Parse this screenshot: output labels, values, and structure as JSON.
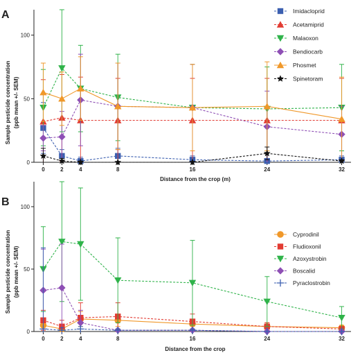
{
  "chart_data": [
    {
      "panel_label": "A",
      "type": "line",
      "xlabel": "Distance from the crop (m)",
      "ylabel_line1": "Sample pesticide concentration",
      "ylabel_line2": "(ppb mean +/- SEM)",
      "x": [
        0,
        2,
        4,
        8,
        16,
        24,
        32
      ],
      "xticks": [
        "0",
        "2",
        "4",
        "8",
        "16",
        "24",
        "32"
      ],
      "yticks": [
        "0",
        "50",
        "100"
      ],
      "ylim": [
        0,
        120
      ],
      "legend_position": "top-right",
      "series": [
        {
          "name": "Imidacloprid",
          "color": "#3b5fb0",
          "marker": "square",
          "line": "dashed",
          "values": [
            27,
            5,
            1,
            5,
            2,
            1,
            2
          ],
          "err": [
            20,
            5,
            3,
            6,
            3,
            2,
            3
          ]
        },
        {
          "name": "Acetamiprid",
          "color": "#e23b32",
          "marker": "triangle-up",
          "line": "dashed",
          "values": [
            32,
            35,
            33,
            33,
            33,
            33,
            33
          ],
          "err": [
            33,
            34,
            34,
            33,
            33,
            33,
            33
          ]
        },
        {
          "name": "Malaoxon",
          "color": "#2fb34a",
          "marker": "triangle-down",
          "line": "dashed",
          "values": [
            43,
            74,
            58,
            51,
            43,
            42,
            43
          ],
          "err": [
            30,
            50,
            34,
            34,
            34,
            33,
            34
          ]
        },
        {
          "name": "Bendiocarb",
          "color": "#8e4fb5",
          "marker": "diamond",
          "line": "dashed",
          "values": [
            19,
            20,
            49,
            44,
            43,
            28,
            22
          ],
          "err": [
            10,
            20,
            36,
            34,
            34,
            28,
            22
          ]
        },
        {
          "name": "Phosmet",
          "color": "#f0982a",
          "marker": "triangle-up",
          "line": "solid",
          "values": [
            55,
            50,
            58,
            44,
            43,
            44,
            34
          ],
          "err": [
            23,
            21,
            25,
            34,
            34,
            35,
            33
          ]
        },
        {
          "name": "Spinetoram",
          "color": "#111111",
          "marker": "star",
          "line": "dashed",
          "values": [
            5,
            1,
            0,
            0,
            0,
            7,
            1
          ],
          "err": [
            6,
            2,
            1,
            0,
            0,
            5,
            1
          ]
        }
      ]
    },
    {
      "panel_label": "B",
      "type": "line",
      "xlabel": "Distance from the crop",
      "ylabel_line1": "Sample pesticide concentration",
      "ylabel_line2": "(ppb mean +/- SEM)",
      "x": [
        0,
        2,
        4,
        8,
        16,
        24,
        32
      ],
      "xticks": [
        "0",
        "2",
        "4",
        "8",
        "16",
        "24",
        "32"
      ],
      "yticks": [
        "0",
        "50",
        "100"
      ],
      "ylim": [
        0,
        120
      ],
      "legend_position": "right",
      "series": [
        {
          "name": "Cyprodinil",
          "color": "#f0982a",
          "marker": "circle",
          "line": "solid",
          "values": [
            5,
            2,
            10,
            9,
            6,
            4,
            3
          ],
          "err": [
            3,
            2,
            6,
            5,
            4,
            3,
            2
          ]
        },
        {
          "name": "Fludioxonil",
          "color": "#e23b32",
          "marker": "square",
          "line": "dashed",
          "values": [
            9,
            4,
            11,
            12,
            8,
            4,
            2
          ],
          "err": [
            8,
            5,
            12,
            11,
            6,
            3,
            2
          ]
        },
        {
          "name": "Azoxystrobin",
          "color": "#2fb34a",
          "marker": "triangle-down",
          "line": "dashed",
          "values": [
            50,
            72,
            70,
            41,
            39,
            24,
            11
          ],
          "err": [
            34,
            48,
            45,
            34,
            34,
            20,
            9
          ]
        },
        {
          "name": "Boscalid",
          "color": "#8e4fb5",
          "marker": "diamond",
          "line": "dashed",
          "values": [
            33,
            35,
            7,
            1,
            1,
            0,
            0
          ],
          "err": [
            33,
            35,
            10,
            1,
            1,
            0,
            0
          ]
        },
        {
          "name": "Pyraclostrobin",
          "color": "#3b5fb0",
          "marker": "plus",
          "line": "dashed",
          "values": [
            2,
            1,
            2,
            1,
            1,
            0,
            0
          ],
          "err": [
            65,
            2,
            2,
            1,
            1,
            0,
            0
          ]
        }
      ]
    }
  ]
}
